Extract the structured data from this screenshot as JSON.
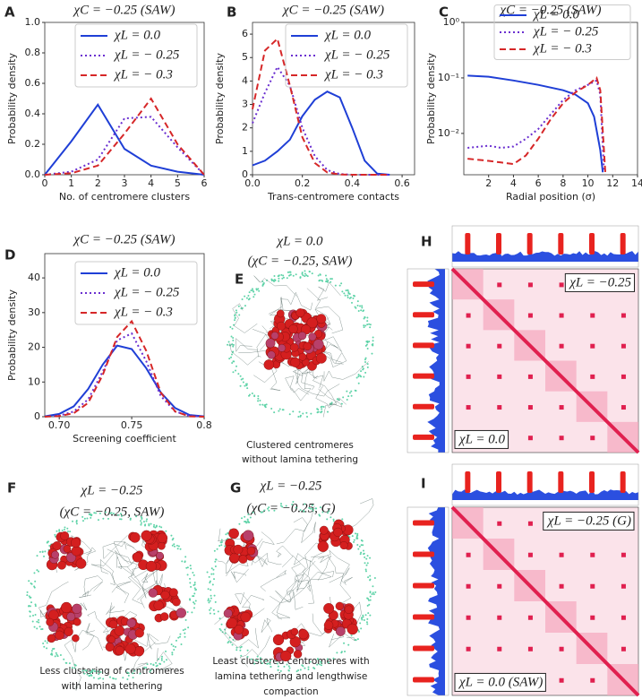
{
  "chart_data": [
    {
      "type": "line",
      "panel": "A",
      "title": "χC = −0.25 (SAW)",
      "xlabel": "No. of centromere clusters",
      "ylabel": "Probability density",
      "x": [
        0,
        1,
        2,
        3,
        4,
        5,
        6
      ],
      "series": [
        {
          "name": "χL = 0.0",
          "color": "#1f3fd6",
          "linestyle": "solid",
          "values": [
            0,
            0.22,
            0.46,
            0.17,
            0.06,
            0.02,
            0
          ]
        },
        {
          "name": "χL = − 0.25",
          "color": "#6a2fd0",
          "linestyle": "dotted",
          "values": [
            0,
            0.02,
            0.1,
            0.37,
            0.38,
            0.18,
            0
          ]
        },
        {
          "name": "χL = − 0.3",
          "color": "#d62728",
          "linestyle": "dashed",
          "values": [
            0,
            0.01,
            0.06,
            0.27,
            0.5,
            0.2,
            0
          ]
        }
      ],
      "xlim": [
        0,
        6
      ],
      "xticks": [
        0,
        1,
        2,
        3,
        4,
        5,
        6
      ],
      "ylim": [
        0,
        1
      ],
      "yticks": [
        {
          "value": 0,
          "label": "0.0"
        },
        0.2,
        0.4,
        0.6,
        0.8,
        {
          "value": 1,
          "label": "1.0"
        }
      ]
    },
    {
      "type": "line",
      "panel": "B",
      "title": "χC = −0.25 (SAW)",
      "xlabel": "Trans-centromere contacts",
      "ylabel": "Probability density",
      "x": [
        0,
        0.05,
        0.1,
        0.15,
        0.2,
        0.25,
        0.3,
        0.35,
        0.4,
        0.45,
        0.5,
        0.55
      ],
      "series": [
        {
          "name": "χL = 0.0",
          "color": "#1f3fd6",
          "linestyle": "solid",
          "values": [
            0.4,
            0.6,
            1.0,
            1.5,
            2.5,
            3.2,
            3.55,
            3.3,
            2.0,
            0.6,
            0.05,
            0
          ]
        },
        {
          "name": "χL = − 0.25",
          "color": "#6a2fd0",
          "linestyle": "dotted",
          "values": [
            2.2,
            3.5,
            4.6,
            3.8,
            2.0,
            0.8,
            0.2,
            0.03,
            0,
            0,
            0,
            0
          ]
        },
        {
          "name": "χL = − 0.3",
          "color": "#d62728",
          "linestyle": "dashed",
          "values": [
            2.8,
            5.3,
            5.8,
            3.8,
            1.6,
            0.5,
            0.1,
            0.01,
            0,
            0,
            0,
            0
          ]
        }
      ],
      "xlim": [
        0,
        0.65
      ],
      "xticks": [
        {
          "value": 0,
          "label": "0.0"
        },
        0.2,
        0.4,
        0.6
      ],
      "ylim": [
        0,
        6.5
      ],
      "yticks": [
        0,
        1,
        2,
        3,
        4,
        5,
        6
      ]
    },
    {
      "type": "line",
      "panel": "C",
      "title": "χC = −0.25 (SAW)",
      "xlabel": "Radial position (σ)",
      "ylabel": "Probability density",
      "log_y": true,
      "series": [
        {
          "name": "χL = 0.0",
          "color": "#1f3fd6",
          "linestyle": "solid",
          "x": [
            0.3,
            2,
            4,
            6,
            8,
            9,
            10,
            10.5,
            11,
            11.2
          ],
          "values": [
            0.11,
            0.105,
            0.09,
            0.075,
            0.06,
            0.05,
            0.035,
            0.02,
            0.005,
            0.002
          ]
        },
        {
          "name": "χL = − 0.25",
          "color": "#6a2fd0",
          "linestyle": "dotted",
          "x": [
            0.3,
            2,
            3,
            4,
            5,
            6,
            7,
            8,
            9,
            10,
            10.7,
            11,
            11.3
          ],
          "values": [
            0.0055,
            0.006,
            0.0055,
            0.0058,
            0.008,
            0.012,
            0.022,
            0.04,
            0.06,
            0.075,
            0.09,
            0.05,
            0.002
          ]
        },
        {
          "name": "χL = − 0.3",
          "color": "#d62728",
          "linestyle": "dashed",
          "x": [
            0.3,
            2,
            3,
            4,
            5,
            6,
            7,
            8,
            9,
            10,
            10.7,
            11,
            11.4
          ],
          "values": [
            0.0035,
            0.0032,
            0.003,
            0.0028,
            0.004,
            0.008,
            0.018,
            0.035,
            0.055,
            0.075,
            0.1,
            0.06,
            0.002
          ]
        }
      ],
      "xlim": [
        0,
        14
      ],
      "xticks": [
        2,
        4,
        6,
        8,
        10,
        12,
        14
      ],
      "ylim": [
        0.0018,
        1
      ],
      "yticks": [
        {
          "value": 1,
          "label": "10⁰"
        },
        {
          "value": 0.1,
          "label": "10⁻¹"
        },
        {
          "value": 0.01,
          "label": "10⁻²"
        }
      ]
    },
    {
      "type": "line",
      "panel": "D",
      "title": "χC = −0.25 (SAW)",
      "xlabel": "Screening coefficient",
      "ylabel": "Probability density",
      "x": [
        0.69,
        0.7,
        0.71,
        0.72,
        0.73,
        0.74,
        0.75,
        0.76,
        0.77,
        0.78,
        0.79,
        0.8
      ],
      "series": [
        {
          "name": "χL = 0.0",
          "color": "#1f3fd6",
          "linestyle": "solid",
          "values": [
            0.1,
            0.8,
            3,
            8,
            15,
            20.5,
            19.5,
            14,
            7,
            2.5,
            0.5,
            0.1
          ]
        },
        {
          "name": "χL = − 0.25",
          "color": "#6a2fd0",
          "linestyle": "dotted",
          "values": [
            0,
            0.3,
            1.5,
            5,
            13,
            22,
            24,
            16,
            6,
            1.5,
            0.2,
            0
          ]
        },
        {
          "name": "χL = − 0.3",
          "color": "#d62728",
          "linestyle": "dashed",
          "values": [
            0,
            0.2,
            1,
            4,
            12,
            23,
            27.5,
            19,
            7,
            1.5,
            0.1,
            0
          ]
        }
      ],
      "xlim": [
        0.69,
        0.8
      ],
      "xticks": [
        {
          "value": 0.7,
          "label": "0.70"
        },
        0.75,
        0.8
      ],
      "ylim": [
        0,
        47
      ],
      "yticks": [
        0,
        10,
        20,
        30,
        40
      ]
    }
  ],
  "panels": [
    {
      "label": "E",
      "title": "χL = 0.0",
      "subtitle": "(χC = −0.25, SAW)",
      "caption": [
        "Clustered centromeres",
        "without lamina tethering"
      ]
    },
    {
      "label": "F",
      "title": "χL = −0.25",
      "subtitle": "(χC = −0.25, SAW)",
      "caption": [
        "Less clustering of centromeres",
        "with lamina tethering"
      ]
    },
    {
      "label": "G",
      "title": "χL = −0.25",
      "subtitle": "(χC = −0.25, G)",
      "caption": [
        "Least clustered centromeres with",
        "lamina tethering and lengthwise",
        "compaction"
      ]
    },
    {
      "label": "H",
      "annotations": [
        "χL = −0.25",
        "χL = 0.0"
      ]
    },
    {
      "label": "I",
      "annotations": [
        "χL = −0.25 (G)",
        "χL = 0.0 (SAW)"
      ]
    }
  ]
}
